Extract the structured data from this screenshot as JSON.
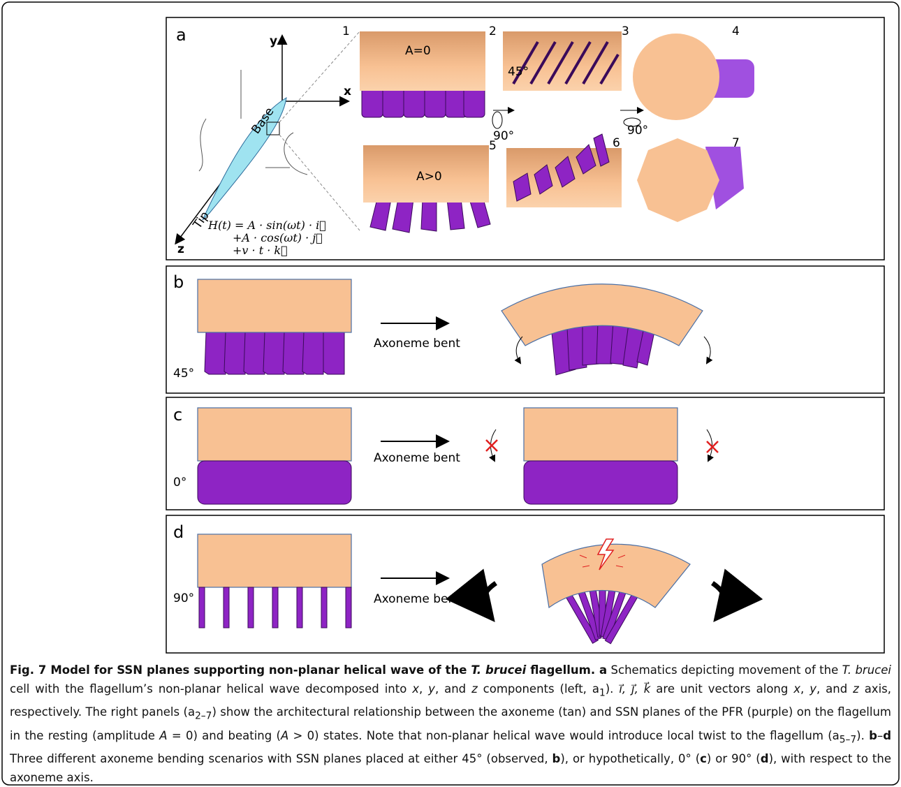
{
  "panel_a": {
    "label": "a",
    "axis_y": "y",
    "axis_x": "x",
    "axis_z": "z",
    "base": "Base",
    "tip": "Tip",
    "equation": [
      "H(t) = A · sin(ωt) · i⃗",
      "+A · cos(ωt) · j⃗",
      "+v · t · k⃗"
    ],
    "subpanel_numbers": [
      "1",
      "2",
      "3",
      "4",
      "5",
      "6",
      "7"
    ],
    "amplitude_labels": [
      "A=0",
      "A>0"
    ],
    "angle_label": "45°",
    "rotation_labels": [
      "90°",
      "90°"
    ]
  },
  "panel_b": {
    "label": "b",
    "angle": "45°",
    "arrow_label": "Axoneme bent"
  },
  "panel_c": {
    "label": "c",
    "angle": "0°",
    "arrow_label": "Axoneme bent"
  },
  "panel_d": {
    "label": "d",
    "angle": "90°",
    "arrow_label": "Axoneme bent"
  },
  "caption": {
    "runs": [
      "Fig. 7 Model for SSN planes supporting non-planar helical wave of the ",
      "T. brucei",
      " flagellum. a",
      " Schematics depicting movement of the ",
      "T. brucei",
      " cell with the flagellum’s non-planar helical wave decomposed into ",
      "x",
      ", ",
      "y",
      ", and ",
      "z",
      " components (left, a",
      "1",
      "). ",
      "i⃗, j⃗, k⃗",
      " are unit vectors along ",
      "x",
      ", ",
      "y",
      ", and ",
      "z",
      " axis, respectively. The right panels (a",
      "2–7",
      ") show the architectural relationship between the axoneme (tan) and SSN planes of the PFR (purple) on the flagellum in the resting (amplitude ",
      "A",
      " = 0) and beating (",
      "A",
      " > 0) states. Note that non-planar helical wave would introduce local twist to the flagellum (a",
      "5–7",
      "). ",
      "b",
      "–",
      "d",
      " Three different axoneme bending scenarios with SSN planes placed at either 45° (observed, ",
      "b",
      "), or hypothetically, 0° (",
      "c",
      ") or 90° (",
      "d",
      "), with respect to the axoneme axis."
    ]
  }
}
